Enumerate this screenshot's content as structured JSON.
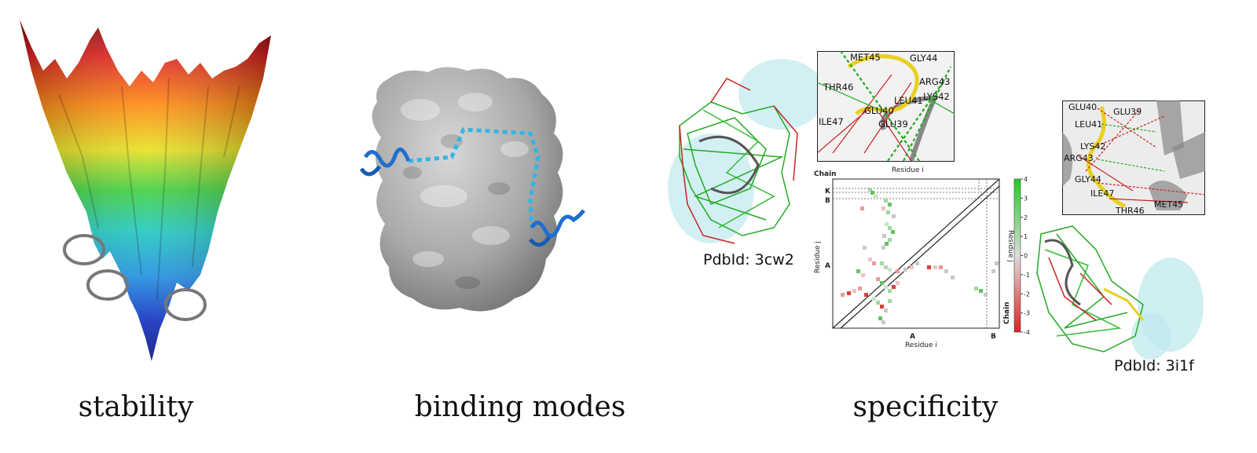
{
  "captions": {
    "stability": "stability",
    "binding": "binding modes",
    "specificity": "specificity"
  },
  "structures": {
    "left_id": "PdbId: 3cw2",
    "right_id": "PdbId: 3i1f"
  },
  "inset_top": {
    "labels": [
      "MET45",
      "GLY44",
      "THR46",
      "ARG43",
      "LYS42",
      "LEU41",
      "GLU40",
      "GLU39",
      "ILE47"
    ],
    "axis": "Residue i"
  },
  "inset_right": {
    "labels": [
      "GLU40",
      "GLU39",
      "LEU41",
      "LYS42",
      "ARG43",
      "GLY44",
      "ILE47",
      "MET45",
      "THR46"
    ]
  },
  "matrix": {
    "chain_label": "Chain",
    "chain_label_right": "Chain",
    "row_chains": [
      "K",
      "B",
      "A"
    ],
    "col_chains": [
      "A",
      "B"
    ],
    "xlabel": "Residue i",
    "ylabel": "Residue j",
    "ylabel_right": "Residue j"
  },
  "colorbar": {
    "ticks": [
      "4",
      "3",
      "2",
      "1",
      "0",
      "-1",
      "-2",
      "-3",
      "-4"
    ],
    "min": -4,
    "max": 4,
    "high_color": "#22cc22",
    "mid_color": "#dddddd",
    "low_color": "#dd2222"
  },
  "colors": {
    "surface": "#9a9a9a",
    "helix": "#1f6fd0",
    "dashed_path": "#33b5e5",
    "circle": "#777777"
  }
}
